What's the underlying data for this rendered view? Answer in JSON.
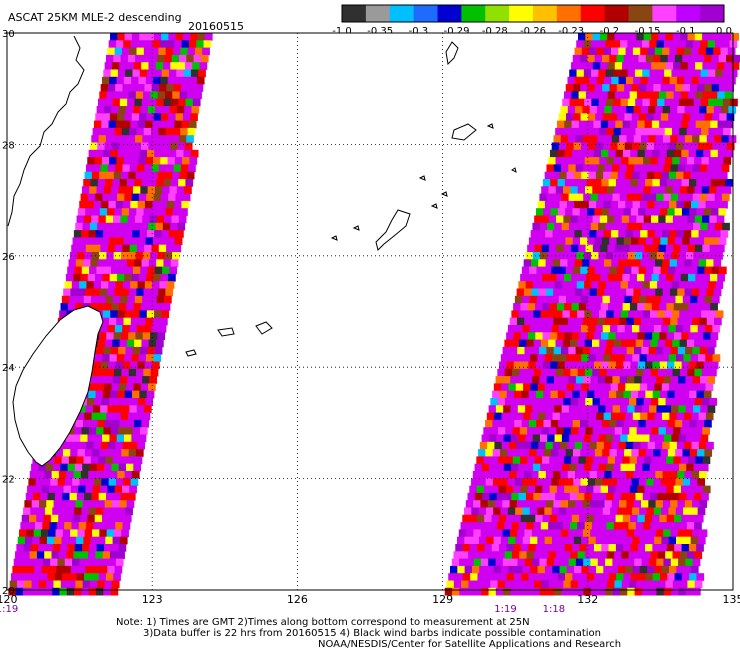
{
  "header": {
    "title": "ASCAT 25KM MLE-2 descending",
    "date": "20160515"
  },
  "legend": {
    "labels": [
      "-1.0",
      "-0.35",
      "-0.3",
      "-0.29",
      "-0.28",
      "-0.26",
      "-0.23",
      "-0.2",
      "-0.15",
      "-0.1",
      "0.0"
    ],
    "colors": [
      "#303030",
      "#9a9a9a",
      "#00bfff",
      "#1e6bff",
      "#0000d0",
      "#00c000",
      "#90e000",
      "#ffff00",
      "#ffc000",
      "#ff7000",
      "#ff0000",
      "#b00000",
      "#8b4513",
      "#ff40ff",
      "#c000ff",
      "#a000d0"
    ]
  },
  "map": {
    "lon_ticks": [
      "120",
      "123",
      "126",
      "129",
      "132",
      "135"
    ],
    "lat_ticks": [
      "20",
      "22",
      "24",
      "26",
      "28",
      "30"
    ],
    "lon_range": [
      120,
      135
    ],
    "lat_range": [
      20,
      30
    ],
    "time_labels": [
      {
        "text": "1:19",
        "lon": 120.0
      },
      {
        "text": "1:19",
        "lon": 130.3
      },
      {
        "text": "1:18",
        "lon": 131.3
      }
    ]
  },
  "notes": {
    "line1": "Note: 1) Times are GMT 2)Times along bottom correspond to measurement at 25N",
    "line2": "3)Data buffer is 22 hrs from 20160515 4) Black wind barbs indicate possible contamination",
    "line3": "NOAA/NESDIS/Center for Satellite Applications and Research"
  }
}
